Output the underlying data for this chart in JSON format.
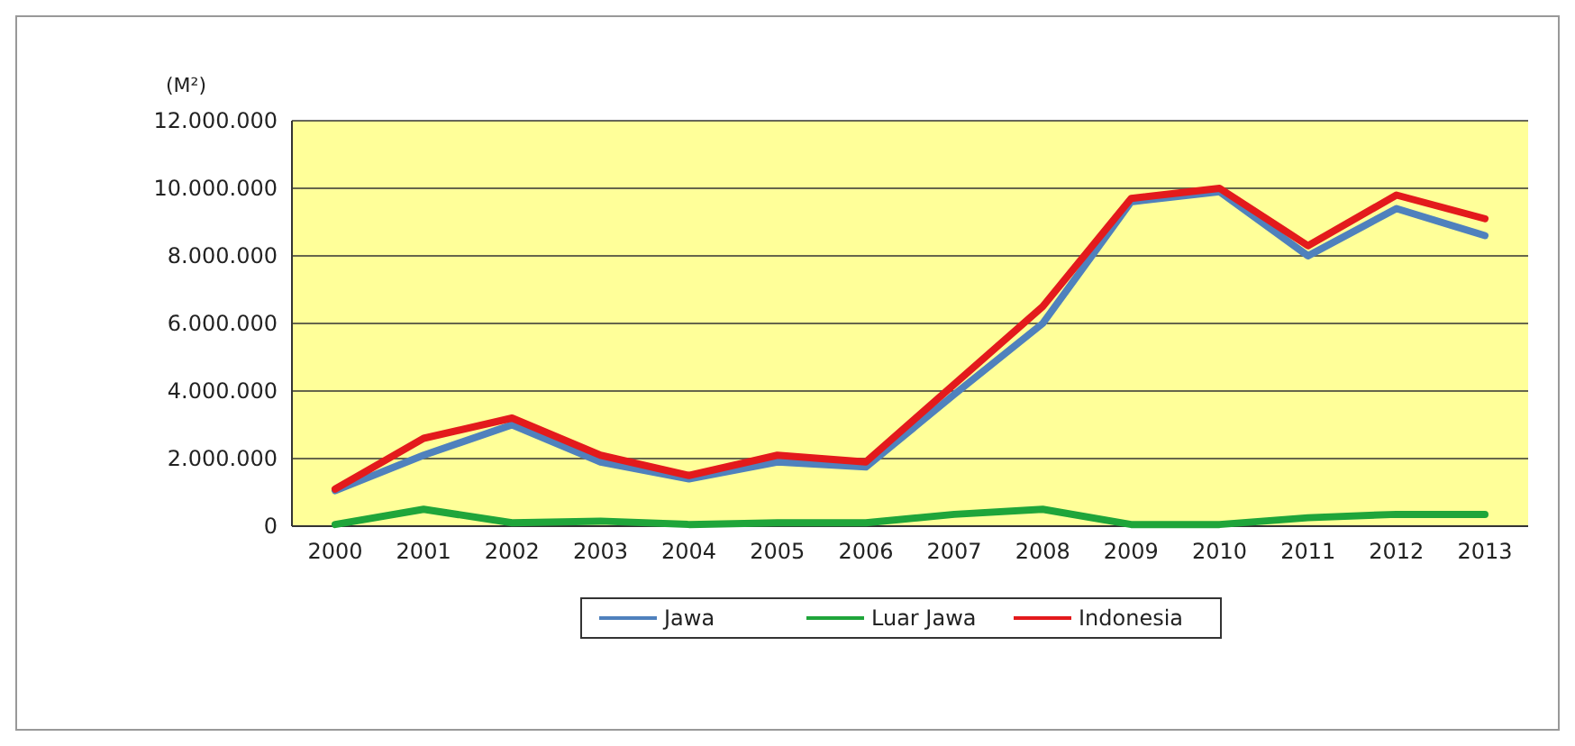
{
  "chart_data": {
    "type": "line",
    "ylabel": "(M²)",
    "categories": [
      "2000",
      "2001",
      "2002",
      "2003",
      "2004",
      "2005",
      "2006",
      "2007",
      "2008",
      "2009",
      "2010",
      "2011",
      "2012",
      "2013"
    ],
    "ylim": [
      0,
      12000000
    ],
    "yticks": [
      {
        "value": 0,
        "label": "0"
      },
      {
        "value": 2000000,
        "label": "2.000.000"
      },
      {
        "value": 4000000,
        "label": "4.000.000"
      },
      {
        "value": 6000000,
        "label": "6.000.000"
      },
      {
        "value": 8000000,
        "label": "8.000.000"
      },
      {
        "value": 10000000,
        "label": "10.000.000"
      },
      {
        "value": 12000000,
        "label": "12.000.000"
      }
    ],
    "grid": "y",
    "legend": "bottom",
    "series": [
      {
        "name": "Jawa",
        "color": "#4f81bd",
        "values": [
          1050000,
          2100000,
          3000000,
          1900000,
          1400000,
          1900000,
          1750000,
          3900000,
          6000000,
          9600000,
          9900000,
          8000000,
          9400000,
          8600000
        ]
      },
      {
        "name": "Luar Jawa",
        "color": "#1fa53a",
        "values": [
          50000,
          500000,
          100000,
          150000,
          50000,
          100000,
          100000,
          350000,
          500000,
          50000,
          50000,
          250000,
          350000,
          350000
        ]
      },
      {
        "name": "Indonesia",
        "color": "#e31a1c",
        "values": [
          1100000,
          2600000,
          3200000,
          2100000,
          1500000,
          2100000,
          1900000,
          4200000,
          6500000,
          9700000,
          10000000,
          8300000,
          9800000,
          9100000
        ]
      }
    ]
  }
}
